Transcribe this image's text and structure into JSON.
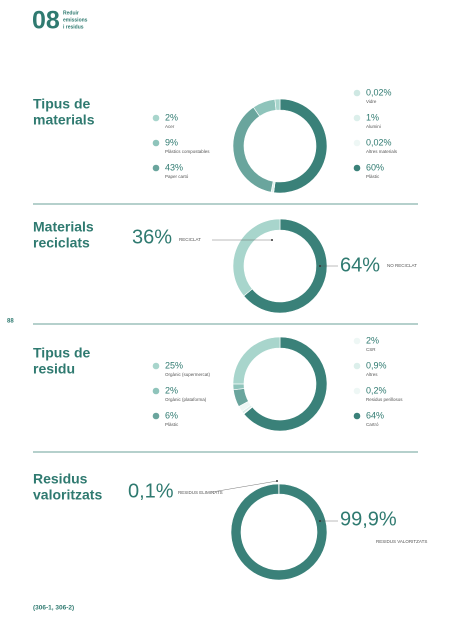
{
  "header": {
    "number": "08",
    "subtitle_lines": [
      "Reduir",
      "emissions",
      "i residus"
    ]
  },
  "page_number": "88",
  "footnote": "(306-1, 306-2)",
  "chart_data": [
    {
      "type": "donut",
      "title": [
        "Tipus de",
        "materials"
      ],
      "categories": [
        "Acer",
        "Plàstics compostables",
        "Paper cartó",
        "Vidre",
        "Alumini",
        "Altres materials",
        "Plàstic"
      ],
      "values": [
        2,
        9,
        43,
        0.02,
        1,
        0.02,
        60
      ],
      "value_labels": [
        "2%",
        "9%",
        "43%",
        "0,02%",
        "1%",
        "0,02%",
        "60%"
      ],
      "colors": [
        "#a8d5cc",
        "#8fc4bb",
        "#6aa59d",
        "#cfe8e3",
        "#dcefeb",
        "#eef7f5",
        "#3a8179"
      ]
    },
    {
      "type": "donut",
      "title": [
        "Materials",
        "reciclats"
      ],
      "categories": [
        "RECICLAT",
        "NO RECICLAT"
      ],
      "values": [
        36,
        64
      ],
      "value_labels": [
        "36%",
        "64%"
      ],
      "colors": [
        "#a8d5cc",
        "#3a8179"
      ]
    },
    {
      "type": "donut",
      "title": [
        "Tipus de",
        "residu"
      ],
      "categories": [
        "Orgànic (supermercat)",
        "Orgànic (plataforma)",
        "Plàstic",
        "CSR",
        "Altres",
        "Residus perillosos",
        "Cartró"
      ],
      "values": [
        25,
        2,
        6,
        2,
        0.9,
        0.2,
        64
      ],
      "value_labels": [
        "25%",
        "2%",
        "6%",
        "2%",
        "0,9%",
        "0,2%",
        "64%"
      ],
      "colors": [
        "#a8d5cc",
        "#8fc4bb",
        "#6aa59d",
        "#eef7f5",
        "#dcefeb",
        "#eef7f5",
        "#3a8179"
      ]
    },
    {
      "type": "donut",
      "title": [
        "Residus",
        "valoritzats"
      ],
      "categories": [
        "RESIDUS ELIMINATS",
        "RESIDUS VALORITZATS"
      ],
      "values": [
        0.1,
        99.9
      ],
      "value_labels": [
        "0,1%",
        "99,9%"
      ],
      "colors": [
        "#a8d5cc",
        "#3a8179"
      ]
    }
  ]
}
